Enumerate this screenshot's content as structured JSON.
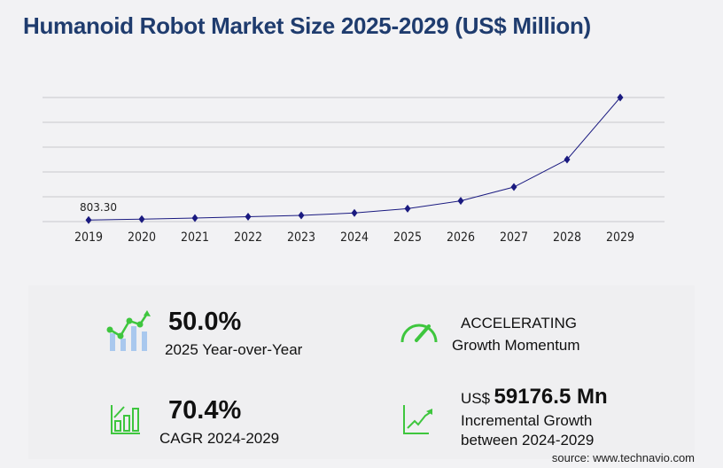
{
  "title": "Humanoid Robot Market Size 2025-2029 (US$ Million)",
  "chart_data": {
    "type": "line",
    "categories": [
      "2019",
      "2020",
      "2021",
      "2022",
      "2023",
      "2024",
      "2025",
      "2026",
      "2027",
      "2028",
      "2029"
    ],
    "values": [
      803.3,
      1250,
      1800,
      2500,
      3200,
      4427,
      6641,
      10600,
      17700,
      31800,
      63604
    ],
    "data_labels": [
      "803.30"
    ],
    "ylim": [
      0,
      63604
    ],
    "grid": true,
    "line_color": "#1a1a80"
  },
  "stats": {
    "yoy_value": "50.0%",
    "yoy_label": "2025 Year-over-Year",
    "momentum_value": "ACCELERATING",
    "momentum_label": "Growth Momentum",
    "cagr_value": "70.4%",
    "cagr_label": "CAGR 2024-2029",
    "incr_prefix": "US$",
    "incr_value": "59176.5 Mn",
    "incr_label1": "Incremental Growth",
    "incr_label2": "between 2024-2029"
  },
  "source": "source: www.technavio.com",
  "colors": {
    "title": "#1f3c6e",
    "accent_green": "#3ec63e",
    "bar_blue": "#a9c8ee"
  }
}
